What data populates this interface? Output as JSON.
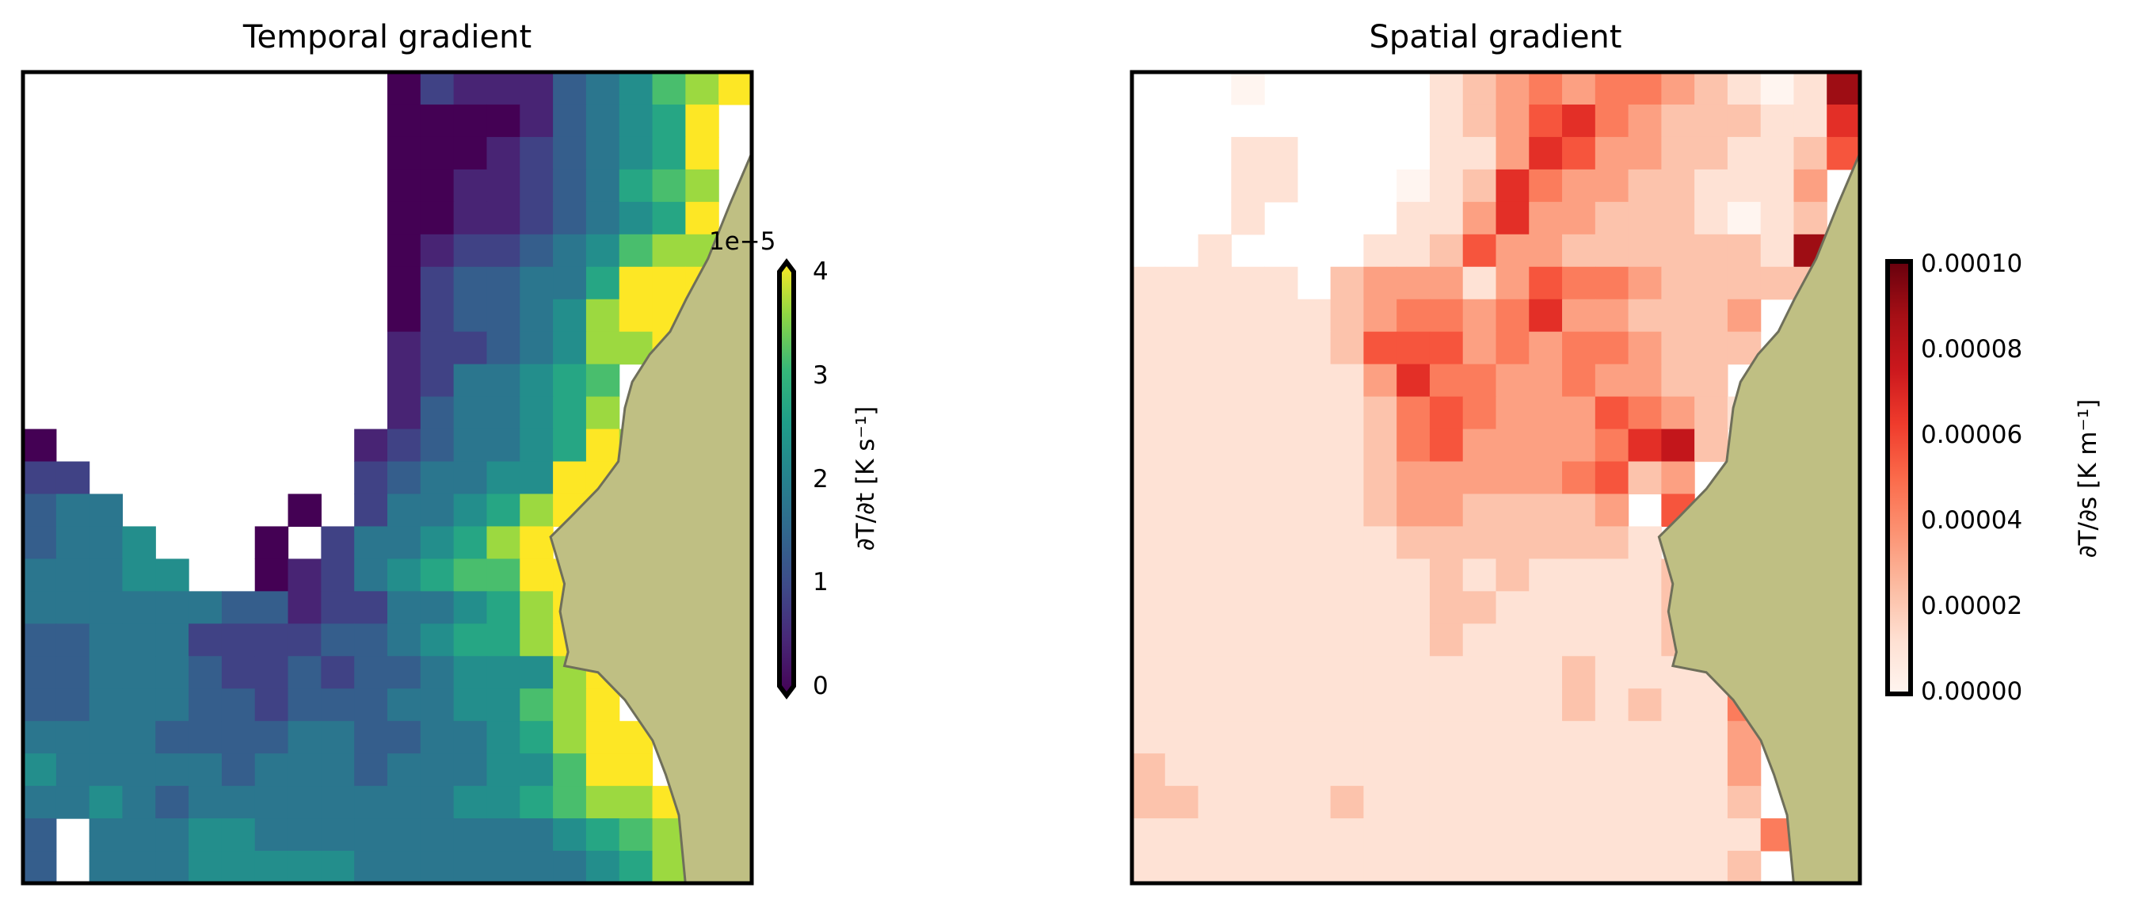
{
  "chart_data": [
    {
      "type": "heatmap",
      "title": "Temporal gradient",
      "colormap": "viridis",
      "colorbar": {
        "label": "∂T/∂t [K s⁻¹]",
        "offset_label": "1e−5",
        "ticks": [
          "0",
          "1",
          "2",
          "3",
          "4"
        ],
        "range": [
          0,
          4e-05
        ],
        "extend": "both"
      },
      "land_color": "#bfbf83",
      "level_value_step": 4.444e-06,
      "rows": [
        "...........02111345789",
        "...........0000134569.",
        "...........0001234569.",
        "...........0011234678.",
        "...........0011234569.",
        "...........0122345788.",
        "...........0233446999.",
        "...........0233458999.",
        "...........1223458899.",
        "...........1244567....",
        "...........1344568....",
        "0.........1234456988..",
        "22........2344559999..",
        "344.....0.244568999...",
        "3445...0.2445689......",
        "44455..0124567799.....",
        "44444433122445689.....",
        "334442222334566899....",
        "3344432232334555899...",
        "334443323334455789....",
        "4444333344334456899...",
        "5444443444344455799...",
        "44543444444445567889..",
        "3.4445544444444456789.",
        "3.4445555544444445689."
      ]
    },
    {
      "type": "heatmap",
      "title": "Spatial gradient",
      "colormap": "Reds",
      "colorbar": {
        "label": "∂T/∂s [K m⁻¹]",
        "ticks": [
          "0.00000",
          "0.00002",
          "0.00004",
          "0.00006",
          "0.00008",
          "0.00010"
        ],
        "range": [
          0,
          0.0001
        ],
        "extend": "neither"
      },
      "land_color": "#bfbf83",
      "level_value_step": 1.111e-05,
      "rows": [
        "...0.....1234344321018",
        ".........1235643222116",
        "...11....1136533221125",
        "...11...0126433221113.",
        "...1....1136332221012.",
        "..1....11253322222218.",
        "11111.233313544322222.",
        "1111112344346332223...",
        "1111112555343443222...",
        "111111136443343322....",
        "1111111245433354321...",
        "111111124533334672....",
        "11111112333334523.....",
        "111111123322223.5.....",
        "1111111122222221.4....",
        "11111111121211112.....",
        "11111111122111112.....",
        "1111111112111111211...",
        "1111111111111211113...",
        "1111111111111212114...",
        "1111111111111111113...",
        "2111111111111111113...",
        "2211112111111111112...",
        "1111111111111111111458",
        "1111111111111111112.25"
      ]
    }
  ]
}
